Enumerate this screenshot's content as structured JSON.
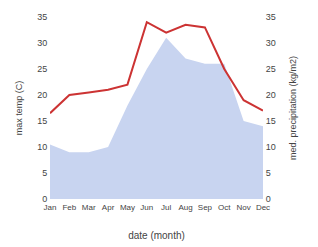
{
  "chart_data": {
    "type": "line",
    "xlabel": "date (month)",
    "ylabel": "max temp (C)",
    "y2label": "med. precipitation (kg/m2)",
    "categories": [
      "Jan",
      "Feb",
      "Mar",
      "Apr",
      "May",
      "Jun",
      "Jul",
      "Aug",
      "Sep",
      "Oct",
      "Nov",
      "Dec"
    ],
    "series": [
      {
        "type": "area",
        "axis": "y2",
        "color": "#c8d4f0",
        "values": [
          10.5,
          9.0,
          9.0,
          10.0,
          18.0,
          25.0,
          31.0,
          27.0,
          26.0,
          26.0,
          15.0,
          14.0
        ]
      },
      {
        "type": "line",
        "color": "#cc3333",
        "values": [
          16.5,
          20.0,
          20.5,
          21.0,
          22.0,
          34.0,
          32.0,
          33.5,
          33.0,
          25.0,
          19.0,
          17.0
        ]
      }
    ],
    "ylim": [
      0,
      35
    ],
    "yticks": [
      0,
      5,
      10,
      15,
      20,
      25,
      30,
      35
    ],
    "y2lim": [
      0,
      35
    ],
    "y2ticks": [
      0,
      5,
      10,
      15,
      20,
      25,
      30,
      35
    ],
    "grid": false
  }
}
